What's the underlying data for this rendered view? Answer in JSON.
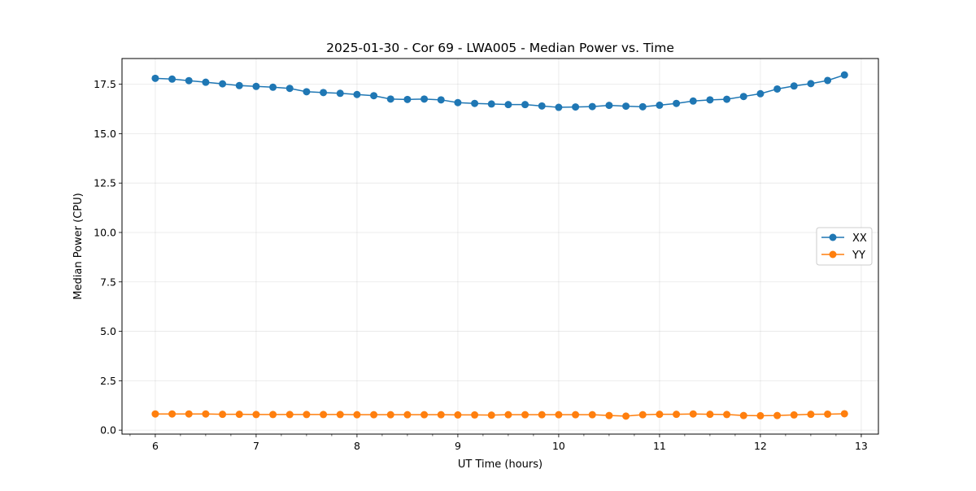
{
  "chart_data": {
    "type": "line",
    "title": "2025-01-30 - Cor 69 - LWA005 - Median Power vs. Time",
    "xlabel": "UT Time (hours)",
    "ylabel": "Median Power (CPU)",
    "xlim": [
      5.67,
      13.17
    ],
    "ylim": [
      -0.2,
      18.8
    ],
    "xticks": [
      6,
      7,
      8,
      9,
      10,
      11,
      12,
      13
    ],
    "xticks_minor": [
      5.75,
      6.25,
      6.5,
      6.75,
      7.25,
      7.5,
      7.75,
      8.25,
      8.5,
      8.75,
      9.25,
      9.5,
      9.75,
      10.25,
      10.5,
      10.75,
      11.25,
      11.5,
      11.75,
      12.25,
      12.5,
      12.75,
      13.0
    ],
    "xtick_labels": [
      "6",
      "7",
      "8",
      "9",
      "10",
      "11",
      "12",
      "13"
    ],
    "yticks": [
      0,
      2.5,
      5,
      7.5,
      10,
      12.5,
      15,
      17.5
    ],
    "ytick_labels": [
      "0.0",
      "2.5",
      "5.0",
      "7.5",
      "10.0",
      "12.5",
      "15.0",
      "17.5"
    ],
    "grid": true,
    "legend_position": "right",
    "x": [
      6.0,
      6.1667,
      6.3333,
      6.5,
      6.6667,
      6.8333,
      7.0,
      7.1667,
      7.3333,
      7.5,
      7.6667,
      7.8333,
      8.0,
      8.1667,
      8.3333,
      8.5,
      8.6667,
      8.8333,
      9.0,
      9.1667,
      9.3333,
      9.5,
      9.6667,
      9.8333,
      10.0,
      10.1667,
      10.3333,
      10.5,
      10.6667,
      10.8333,
      11.0,
      11.1667,
      11.3333,
      11.5,
      11.6667,
      11.8333,
      12.0,
      12.1667,
      12.3333,
      12.5,
      12.6667,
      12.8333
    ],
    "series": [
      {
        "name": "XX",
        "color": "#1f77b4",
        "values": [
          17.8,
          17.76,
          17.68,
          17.6,
          17.52,
          17.43,
          17.39,
          17.35,
          17.29,
          17.12,
          17.08,
          17.04,
          16.98,
          16.92,
          16.75,
          16.73,
          16.75,
          16.71,
          16.57,
          16.53,
          16.5,
          16.47,
          16.47,
          16.4,
          16.33,
          16.35,
          16.37,
          16.43,
          16.39,
          16.36,
          16.44,
          16.53,
          16.65,
          16.71,
          16.74,
          16.88,
          17.02,
          17.26,
          17.41,
          17.53,
          17.69,
          17.97
        ]
      },
      {
        "name": "YY",
        "color": "#ff7f0e",
        "values": [
          0.82,
          0.82,
          0.82,
          0.82,
          0.8,
          0.8,
          0.79,
          0.79,
          0.79,
          0.79,
          0.79,
          0.79,
          0.78,
          0.78,
          0.78,
          0.78,
          0.78,
          0.78,
          0.77,
          0.77,
          0.76,
          0.78,
          0.78,
          0.78,
          0.78,
          0.78,
          0.78,
          0.74,
          0.71,
          0.78,
          0.8,
          0.8,
          0.82,
          0.8,
          0.79,
          0.74,
          0.73,
          0.74,
          0.77,
          0.8,
          0.81,
          0.83
        ]
      }
    ]
  }
}
